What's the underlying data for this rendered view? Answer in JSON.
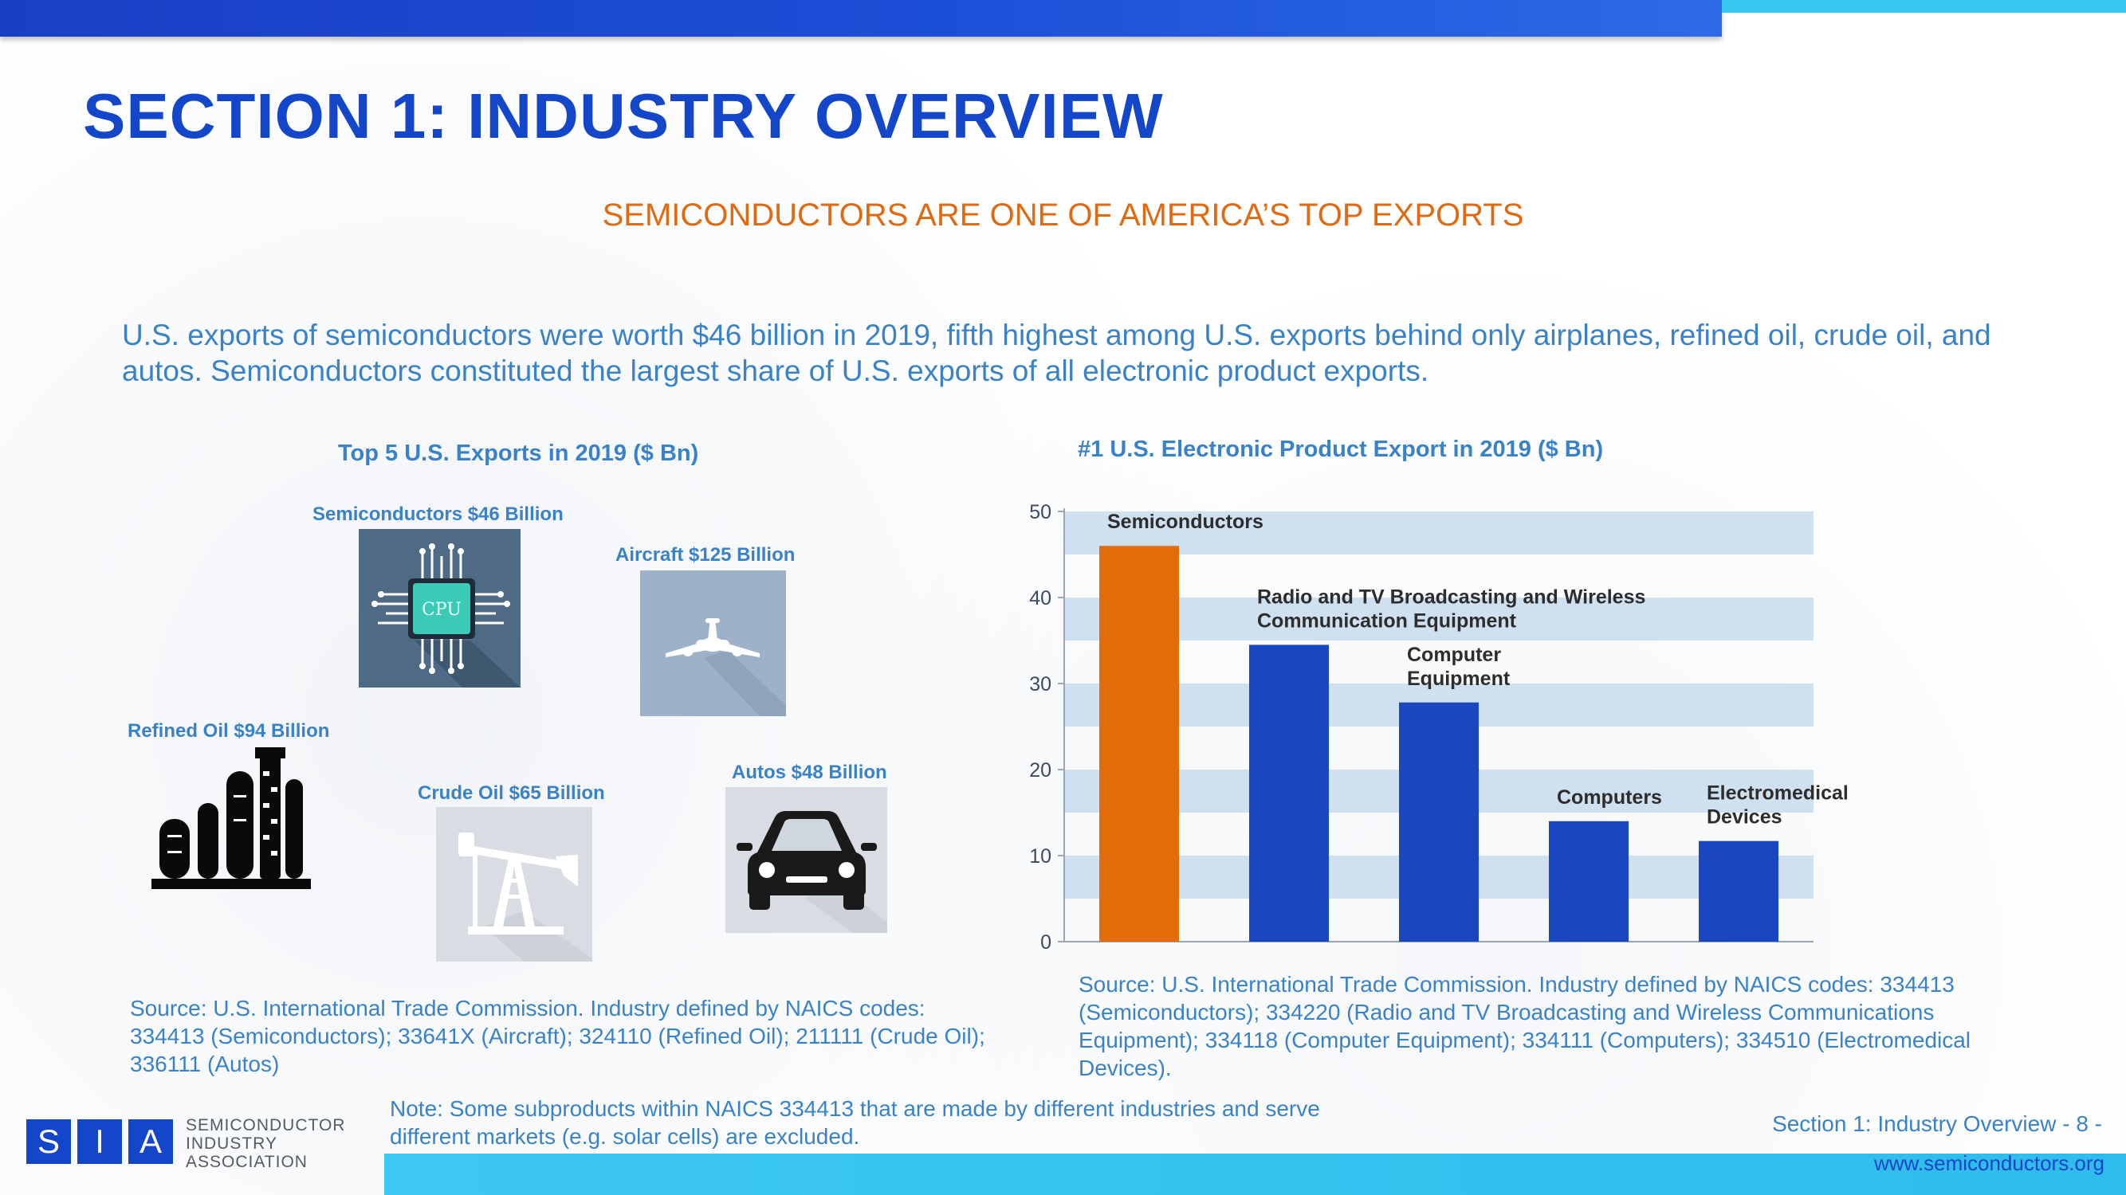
{
  "slide": {
    "title": "SECTION 1: INDUSTRY OVERVIEW",
    "subtitle": "SEMICONDUCTORS ARE ONE OF AMERICA’S TOP EXPORTS",
    "intro": "U.S. exports of semiconductors were worth $46 billion in 2019, fifth highest among U.S. exports behind only airplanes, refined oil, crude oil, and autos. Semiconductors constituted the largest share of U.S. exports of all electronic product exports."
  },
  "left_panel": {
    "title": "Top 5 U.S. Exports in 2019 ($ Bn)",
    "items": [
      {
        "label": "Semiconductors $46 Billion",
        "icon": "cpu-chip-icon"
      },
      {
        "label": "Aircraft $125 Billion",
        "icon": "airplane-icon"
      },
      {
        "label": "Refined Oil $94 Billion",
        "icon": "refinery-icon"
      },
      {
        "label": "Crude Oil $65 Billion",
        "icon": "oil-pump-icon"
      },
      {
        "label": "Autos $48 Billion",
        "icon": "car-icon"
      }
    ],
    "cpu_text": "CPU",
    "source": "Source: U.S. International Trade Commission. Industry defined by NAICS codes: 334413 (Semiconductors); 33641X (Aircraft); 324110 (Refined Oil); 211111 (Crude Oil); 336111 (Autos)"
  },
  "note": "Note: Some subproducts within NAICS 334413 that are made by different industries and serve different markets (e.g. solar cells) are excluded.",
  "chart_data": {
    "type": "bar",
    "title": "#1 U.S. Electronic Product Export in 2019 ($ Bn)",
    "categories": [
      "Semiconductors",
      "Radio and TV Broadcasting and Wireless Communication Equipment",
      "Computer Equipment",
      "Computers",
      "Electromedical Devices"
    ],
    "category_label_lines": [
      [
        "Semiconductors"
      ],
      [
        "Radio and TV Broadcasting and Wireless",
        "Communication Equipment"
      ],
      [
        "Computer",
        "Equipment"
      ],
      [
        "Computers"
      ],
      [
        "Electromedical",
        "Devices"
      ]
    ],
    "values": [
      46,
      34.5,
      27.8,
      14,
      11.7
    ],
    "highlight_index": 0,
    "ylim": [
      0,
      50
    ],
    "yticks": [
      "0",
      "10",
      "20",
      "30",
      "40",
      "50"
    ],
    "grid": "horizontal bands",
    "xlabel": "",
    "ylabel": "",
    "source": "Source: U.S. International Trade Commission. Industry defined by NAICS codes: 334413 (Semiconductors); 334220 (Radio and TV Broadcasting and Wireless Communications Equipment); 334118 (Computer Equipment); 334111 (Computers); 334510 (Electromedical Devices)."
  },
  "colors": {
    "title": "#1346c9",
    "subtitle": "#e06a12",
    "body_text": "#3a82c8",
    "bar_highlight": "#e36c0a",
    "bar_default": "#1a47bf",
    "band": "#cfe0f0",
    "accent_cyan": "#38c6f0"
  },
  "footer": {
    "logo_letters": [
      "S",
      "I",
      "A"
    ],
    "org_lines": [
      "SEMICONDUCTOR",
      "INDUSTRY",
      "ASSOCIATION"
    ],
    "section_page": "Section 1: Industry Overview - 8 -",
    "url": "www.semiconductors.org"
  }
}
